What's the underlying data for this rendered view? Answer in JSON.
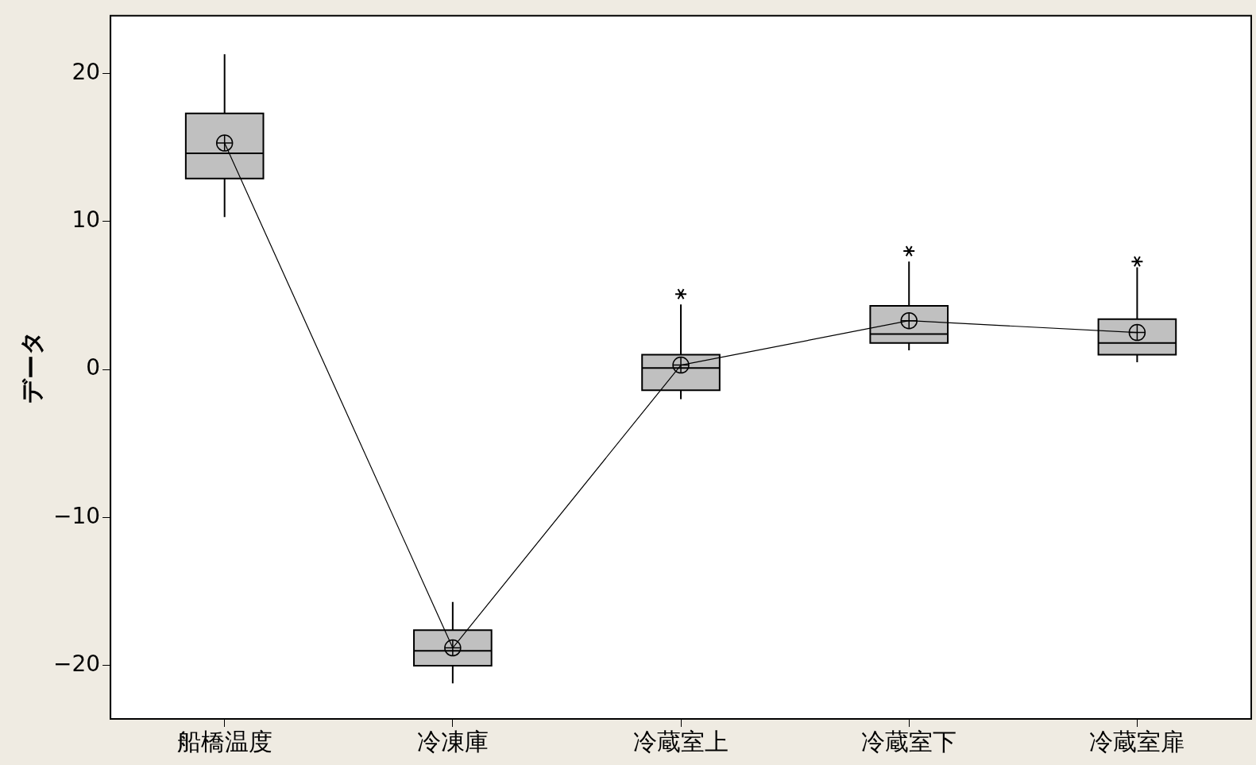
{
  "chart_data": {
    "type": "box",
    "ylabel": "データ",
    "categories": [
      "船橋温度",
      "冷凍庫",
      "冷蔵室上",
      "冷蔵室下",
      "冷蔵室扉"
    ],
    "ylim": [
      -23.6,
      23.9
    ],
    "yticks": [
      -20,
      -10,
      0,
      10,
      20
    ],
    "grid": false,
    "legend": false,
    "series": [
      {
        "type": "box",
        "color": "#c0c0c0",
        "boxes": [
          {
            "low": 10.3,
            "q1": 12.9,
            "median": 14.6,
            "q3": 17.3,
            "high": 21.3
          },
          {
            "low": -21.2,
            "q1": -20.0,
            "median": -19.0,
            "q3": -17.6,
            "high": -15.7
          },
          {
            "low": -2.0,
            "q1": -1.4,
            "median": 0.1,
            "q3": 1.0,
            "high": 4.4,
            "outliers": [
              5.1
            ]
          },
          {
            "low": 1.3,
            "q1": 1.8,
            "median": 2.4,
            "q3": 4.3,
            "high": 7.3,
            "outliers": [
              8.0
            ]
          },
          {
            "low": 0.5,
            "q1": 1.0,
            "median": 1.8,
            "q3": 3.4,
            "high": 6.9,
            "outliers": [
              7.3
            ]
          }
        ]
      },
      {
        "type": "line",
        "color": "#000000",
        "marker": "circle",
        "values": [
          15.3,
          -18.8,
          0.3,
          3.3,
          2.5
        ]
      }
    ]
  }
}
